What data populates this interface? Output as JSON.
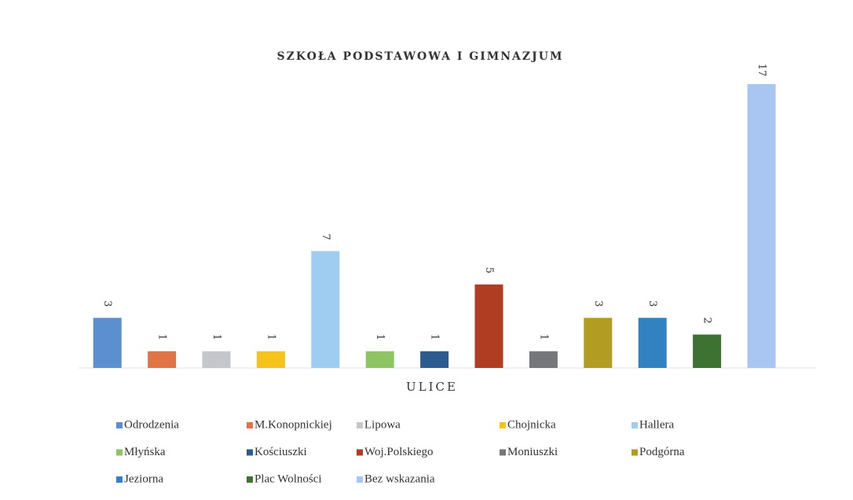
{
  "chart_data": {
    "type": "bar",
    "title": "SZKOŁA PODSTAWOWA I GIMNAZJUM",
    "x_label": "ULICE",
    "ylim": [
      0,
      17
    ],
    "series": [
      {
        "name": "Odrodzenia",
        "color": "#5b8fd0",
        "values": [
          3
        ]
      },
      {
        "name": "M.Konopnickiej",
        "color": "#e07444",
        "values": [
          1
        ]
      },
      {
        "name": "Lipowa",
        "color": "#c4c6cc",
        "values": [
          1
        ]
      },
      {
        "name": "Chojnicka",
        "color": "#f6c31c",
        "values": [
          1
        ]
      },
      {
        "name": "Hallera",
        "color": "#9fcdf2",
        "values": [
          7
        ]
      },
      {
        "name": "Młyńska",
        "color": "#8fc462",
        "values": [
          1
        ]
      },
      {
        "name": "Kościuszki",
        "color": "#2c5b92",
        "values": [
          1
        ]
      },
      {
        "name": "Woj.Polskiego",
        "color": "#b03c22",
        "values": [
          5
        ]
      },
      {
        "name": "Moniuszki",
        "color": "#76777a",
        "values": [
          1
        ]
      },
      {
        "name": "Podgórna",
        "color": "#b39c22",
        "values": [
          3
        ]
      },
      {
        "name": "Jeziorna",
        "color": "#3282c2",
        "values": [
          3
        ]
      },
      {
        "name": "Plac Wolności",
        "color": "#3d7232",
        "values": [
          2
        ]
      },
      {
        "name": "Bez wskazania",
        "color": "#a9c6f2",
        "values": [
          17
        ]
      }
    ]
  }
}
